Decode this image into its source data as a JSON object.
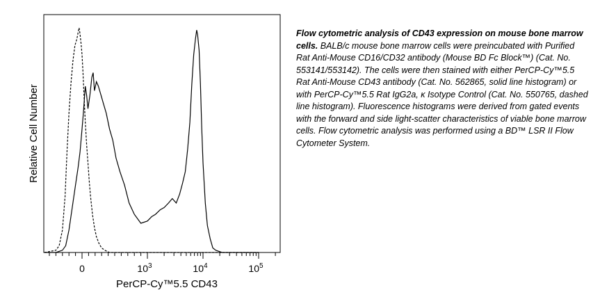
{
  "chart_data": {
    "type": "line",
    "title": "",
    "xlabel": "PerCP-Cy™5.5 CD43",
    "ylabel": "Relative Cell Number",
    "x_scale": "biexponential",
    "x_ticks": [
      {
        "value": "0",
        "label": "0"
      },
      {
        "value": "1000",
        "label": "10",
        "sup": "3"
      },
      {
        "value": "10000",
        "label": "10",
        "sup": "4"
      },
      {
        "value": "100000",
        "label": "10",
        "sup": "5"
      }
    ],
    "grid": false,
    "legend": "none",
    "series": [
      {
        "style": "solid",
        "points": [
          [
            -600,
            0.0
          ],
          [
            -400,
            0.0
          ],
          [
            -300,
            0.01
          ],
          [
            -250,
            0.03
          ],
          [
            -200,
            0.1
          ],
          [
            -150,
            0.2
          ],
          [
            -100,
            0.3
          ],
          [
            -60,
            0.38
          ],
          [
            -30,
            0.45
          ],
          [
            0,
            0.55
          ],
          [
            20,
            0.62
          ],
          [
            50,
            0.74
          ],
          [
            70,
            0.7
          ],
          [
            90,
            0.64
          ],
          [
            120,
            0.7
          ],
          [
            150,
            0.78
          ],
          [
            170,
            0.8
          ],
          [
            190,
            0.72
          ],
          [
            220,
            0.76
          ],
          [
            250,
            0.74
          ],
          [
            290,
            0.7
          ],
          [
            330,
            0.66
          ],
          [
            370,
            0.62
          ],
          [
            420,
            0.55
          ],
          [
            470,
            0.5
          ],
          [
            520,
            0.42
          ],
          [
            580,
            0.36
          ],
          [
            650,
            0.3
          ],
          [
            720,
            0.22
          ],
          [
            800,
            0.17
          ],
          [
            900,
            0.13
          ],
          [
            1000,
            0.14
          ],
          [
            1200,
            0.16
          ],
          [
            1400,
            0.17
          ],
          [
            1700,
            0.19
          ],
          [
            2000,
            0.2
          ],
          [
            2400,
            0.22
          ],
          [
            2800,
            0.24
          ],
          [
            3300,
            0.22
          ],
          [
            3800,
            0.26
          ],
          [
            4300,
            0.31
          ],
          [
            4800,
            0.36
          ],
          [
            5300,
            0.46
          ],
          [
            5800,
            0.58
          ],
          [
            6300,
            0.75
          ],
          [
            6800,
            0.88
          ],
          [
            7300,
            0.95
          ],
          [
            7700,
            0.99
          ],
          [
            8000,
            0.97
          ],
          [
            8500,
            0.9
          ],
          [
            9000,
            0.75
          ],
          [
            9500,
            0.55
          ],
          [
            10000,
            0.4
          ],
          [
            11000,
            0.22
          ],
          [
            12000,
            0.12
          ],
          [
            13500,
            0.06
          ],
          [
            15000,
            0.02
          ],
          [
            17000,
            0.01
          ],
          [
            22000,
            0.0
          ],
          [
            100000,
            0.0
          ]
        ]
      },
      {
        "style": "dashed",
        "points": [
          [
            -600,
            0.0
          ],
          [
            -400,
            0.01
          ],
          [
            -350,
            0.03
          ],
          [
            -300,
            0.1
          ],
          [
            -260,
            0.25
          ],
          [
            -230,
            0.45
          ],
          [
            -200,
            0.62
          ],
          [
            -170,
            0.75
          ],
          [
            -140,
            0.85
          ],
          [
            -110,
            0.92
          ],
          [
            -80,
            0.95
          ],
          [
            -60,
            0.98
          ],
          [
            -45,
            1.0
          ],
          [
            -30,
            0.97
          ],
          [
            -15,
            0.93
          ],
          [
            0,
            0.88
          ],
          [
            15,
            0.8
          ],
          [
            30,
            0.7
          ],
          [
            50,
            0.58
          ],
          [
            70,
            0.48
          ],
          [
            90,
            0.4
          ],
          [
            110,
            0.32
          ],
          [
            130,
            0.25
          ],
          [
            160,
            0.17
          ],
          [
            190,
            0.11
          ],
          [
            220,
            0.07
          ],
          [
            260,
            0.04
          ],
          [
            300,
            0.02
          ],
          [
            350,
            0.01
          ],
          [
            420,
            0.0
          ],
          [
            100000,
            0.0
          ]
        ]
      }
    ]
  },
  "caption": {
    "lead": "Flow cytometric analysis of CD43 expression on mouse bone marrow cells.",
    "body": " BALB/c mouse bone marrow cells were preincubated with Purified Rat Anti-Mouse CD16/CD32 antibody (Mouse BD Fc Block™) (Cat. No. 553141/553142). The cells were then stained with either PerCP-Cy™5.5 Rat Anti-Mouse CD43 antibody (Cat. No. 562865, solid line histogram) or with PerCP-Cy™5.5 Rat IgG2a, κ Isotype Control (Cat. No. 550765, dashed line histogram). Fluorescence histograms were derived from gated events with the forward and side light-scatter characteristics of viable bone marrow cells. Flow cytometric analysis was performed using a BD™ LSR II Flow Cytometer System."
  }
}
